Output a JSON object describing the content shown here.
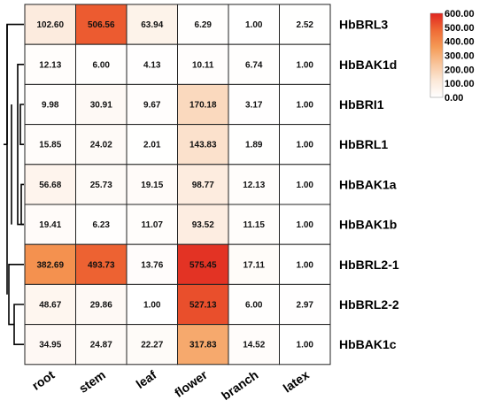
{
  "chart_data": {
    "type": "heatmap",
    "title": "",
    "xlabel": "",
    "ylabel": "",
    "columns": [
      "root",
      "stem",
      "leaf",
      "flower",
      "branch",
      "latex"
    ],
    "rows": [
      "HbBRL3",
      "HbBAK1d",
      "HbBRI1",
      "HbBRL1",
      "HbBAK1a",
      "HbBAK1b",
      "HbBRL2-1",
      "HbBRL2-2",
      "HbBAK1c"
    ],
    "values": [
      [
        102.6,
        506.56,
        63.94,
        6.29,
        1.0,
        2.52
      ],
      [
        12.13,
        6.0,
        4.13,
        10.11,
        6.74,
        1.0
      ],
      [
        9.98,
        30.91,
        9.67,
        170.18,
        3.17,
        1.0
      ],
      [
        15.85,
        24.02,
        2.01,
        143.83,
        1.89,
        1.0
      ],
      [
        56.68,
        25.73,
        19.15,
        98.77,
        12.13,
        1.0
      ],
      [
        19.41,
        6.23,
        11.07,
        93.52,
        11.15,
        1.0
      ],
      [
        382.69,
        493.73,
        13.76,
        575.45,
        17.11,
        1.0
      ],
      [
        48.67,
        29.86,
        1.0,
        527.13,
        6.0,
        2.97
      ],
      [
        34.95,
        24.87,
        22.27,
        317.83,
        14.52,
        1.0
      ]
    ],
    "value_labels": [
      [
        "102.60",
        "506.56",
        "63.94",
        "6.29",
        "1.00",
        "2.52"
      ],
      [
        "12.13",
        "6.00",
        "4.13",
        "10.11",
        "6.74",
        "1.00"
      ],
      [
        "9.98",
        "30.91",
        "9.67",
        "170.18",
        "3.17",
        "1.00"
      ],
      [
        "15.85",
        "24.02",
        "2.01",
        "143.83",
        "1.89",
        "1.00"
      ],
      [
        "56.68",
        "25.73",
        "19.15",
        "98.77",
        "12.13",
        "1.00"
      ],
      [
        "19.41",
        "6.23",
        "11.07",
        "93.52",
        "11.15",
        "1.00"
      ],
      [
        "382.69",
        "493.73",
        "13.76",
        "575.45",
        "17.11",
        "1.00"
      ],
      [
        "48.67",
        "29.86",
        "1.00",
        "527.13",
        "6.00",
        "2.97"
      ],
      [
        "34.95",
        "24.87",
        "22.27",
        "317.83",
        "14.52",
        "1.00"
      ]
    ],
    "colorbar": {
      "min": 0,
      "max": 600,
      "tick_labels": [
        "600.00",
        "500.00",
        "400.00",
        "300.00",
        "200.00",
        "100.00",
        "0.00"
      ],
      "colors": [
        "#ffffff",
        "#fce8d8",
        "#f8c49a",
        "#f59a55",
        "#ef6a35",
        "#e0251f"
      ]
    },
    "row_dendrogram": true,
    "grid": true
  }
}
